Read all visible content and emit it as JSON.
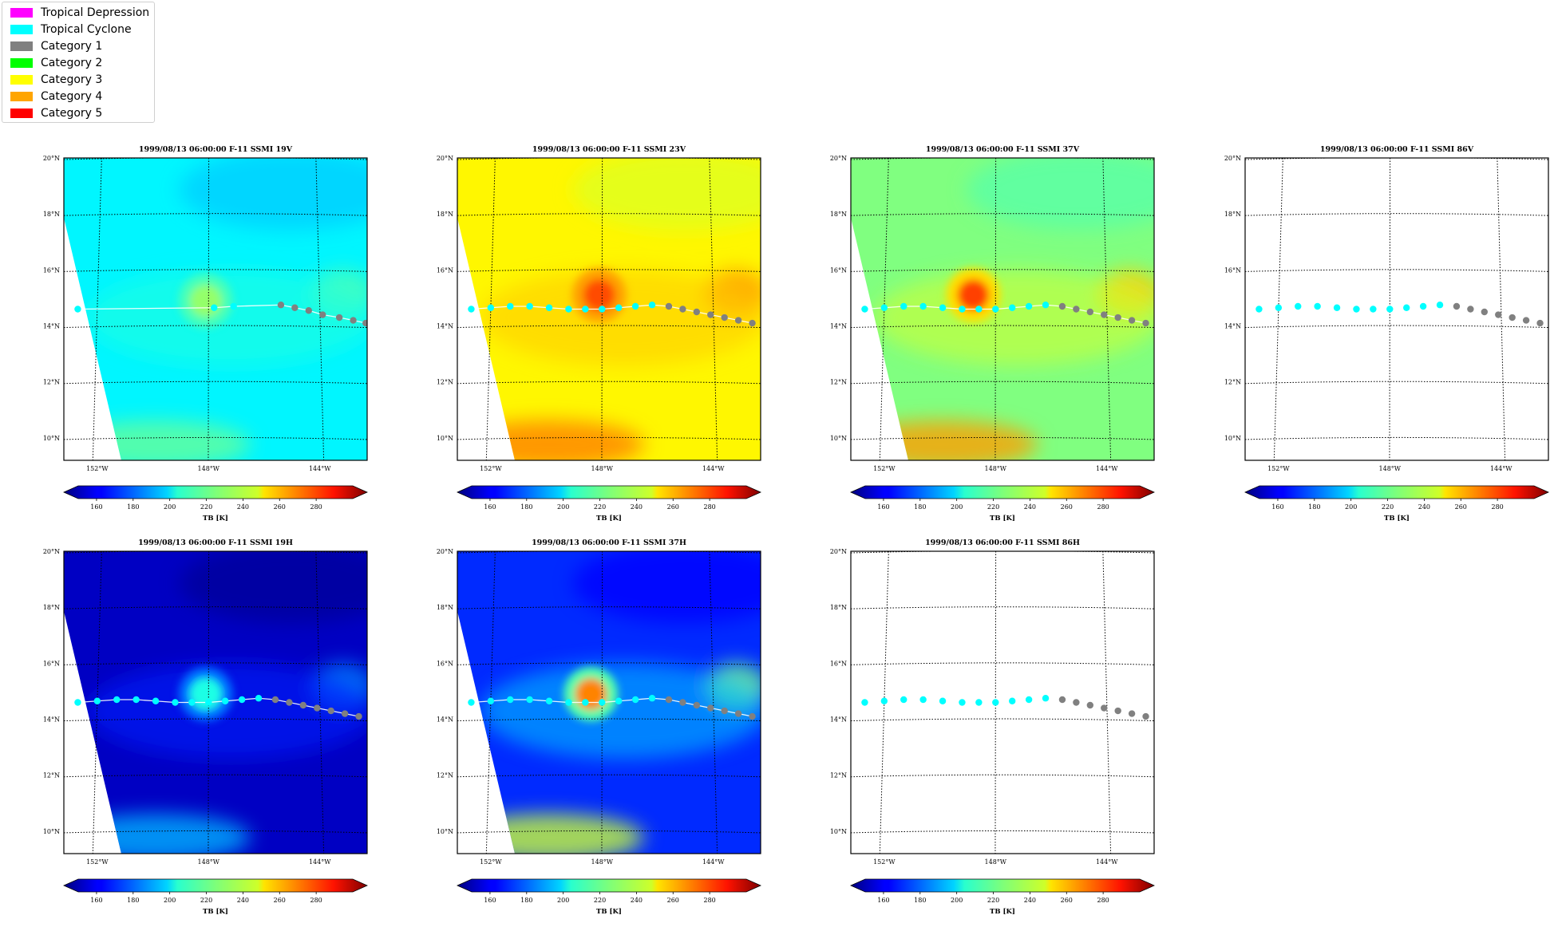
{
  "legend": [
    {
      "label": "Tropical Depression",
      "color": "#ff00ff"
    },
    {
      "label": "Tropical Cyclone",
      "color": "#00ffff"
    },
    {
      "label": "Category 1",
      "color": "#808080"
    },
    {
      "label": "Category 2",
      "color": "#00ff00"
    },
    {
      "label": "Category 3",
      "color": "#ffff00"
    },
    {
      "label": "Category 4",
      "color": "#ffa500"
    },
    {
      "label": "Category 5",
      "color": "#ff0000"
    }
  ],
  "chart_data": [
    {
      "type": "heatmap",
      "title": "1999/08/13 06:00:00  F-11 SSMI 19V",
      "channel": "19V",
      "xlabel": "",
      "ylabel": "",
      "x_ticks": [
        "152°W",
        "148°W",
        "144°W"
      ],
      "y_ticks": [
        "20°N",
        "18°N",
        "16°N",
        "14°N",
        "12°N",
        "10°N"
      ],
      "lon_range": [
        -153.2,
        -142.3
      ],
      "lat_range": [
        9.2,
        20.0
      ],
      "grid": true,
      "colorbar": {
        "label": "TB [K]",
        "ticks": [
          "160",
          "180",
          "200",
          "220",
          "240",
          "260",
          "280"
        ],
        "range": [
          150,
          300
        ],
        "colormap": "jet"
      },
      "field": {
        "background_tb": 205,
        "core_tb": 228,
        "core_lon": -148.1,
        "core_lat": 14.9,
        "coverage": "swath"
      },
      "track": [
        {
          "lon": -152.7,
          "lat": 14.6,
          "category": "Tropical Cyclone"
        },
        {
          "lon": -147.8,
          "lat": 14.65,
          "category": "Tropical Cyclone"
        },
        {
          "lon": -147.1,
          "lat": 14.7,
          "category": "Tropical Cyclone"
        },
        {
          "lon": -145.4,
          "lat": 14.75,
          "category": "Category 1"
        },
        {
          "lon": -144.9,
          "lat": 14.65,
          "category": "Category 1"
        },
        {
          "lon": -144.4,
          "lat": 14.55,
          "category": "Category 1"
        },
        {
          "lon": -143.9,
          "lat": 14.4,
          "category": "Category 1"
        },
        {
          "lon": -143.3,
          "lat": 14.3,
          "category": "Category 1"
        },
        {
          "lon": -142.8,
          "lat": 14.2,
          "category": "Category 1"
        },
        {
          "lon": -142.35,
          "lat": 14.1,
          "category": "Category 1"
        }
      ]
    },
    {
      "type": "heatmap",
      "title": "1999/08/13 06:00:00  F-11 SSMI 23V",
      "channel": "23V",
      "xlabel": "",
      "ylabel": "",
      "x_ticks": [
        "152°W",
        "148°W",
        "144°W"
      ],
      "y_ticks": [
        "20°N",
        "18°N",
        "16°N",
        "14°N",
        "12°N",
        "10°N"
      ],
      "lon_range": [
        -153.2,
        -142.3
      ],
      "lat_range": [
        9.2,
        20.0
      ],
      "grid": true,
      "colorbar": {
        "label": "TB [K]",
        "ticks": [
          "160",
          "180",
          "200",
          "220",
          "240",
          "260",
          "280"
        ],
        "range": [
          150,
          300
        ],
        "colormap": "jet"
      },
      "field": {
        "background_tb": 245,
        "core_tb": 270,
        "core_lon": -148.1,
        "core_lat": 15.1,
        "coverage": "swath"
      },
      "track": [
        {
          "lon": -152.7,
          "lat": 14.6,
          "category": "Tropical Cyclone"
        },
        {
          "lon": -152.0,
          "lat": 14.65,
          "category": "Tropical Cyclone"
        },
        {
          "lon": -151.3,
          "lat": 14.7,
          "category": "Tropical Cyclone"
        },
        {
          "lon": -150.6,
          "lat": 14.7,
          "category": "Tropical Cyclone"
        },
        {
          "lon": -149.9,
          "lat": 14.65,
          "category": "Tropical Cyclone"
        },
        {
          "lon": -149.2,
          "lat": 14.6,
          "category": "Tropical Cyclone"
        },
        {
          "lon": -148.6,
          "lat": 14.6,
          "category": "Tropical Cyclone"
        },
        {
          "lon": -148.0,
          "lat": 14.6,
          "category": "Tropical Cyclone"
        },
        {
          "lon": -147.4,
          "lat": 14.65,
          "category": "Tropical Cyclone"
        },
        {
          "lon": -146.8,
          "lat": 14.7,
          "category": "Tropical Cyclone"
        },
        {
          "lon": -146.2,
          "lat": 14.75,
          "category": "Tropical Cyclone"
        },
        {
          "lon": -145.6,
          "lat": 14.7,
          "category": "Category 1"
        },
        {
          "lon": -145.1,
          "lat": 14.6,
          "category": "Category 1"
        },
        {
          "lon": -144.6,
          "lat": 14.5,
          "category": "Category 1"
        },
        {
          "lon": -144.1,
          "lat": 14.4,
          "category": "Category 1"
        },
        {
          "lon": -143.6,
          "lat": 14.3,
          "category": "Category 1"
        },
        {
          "lon": -143.1,
          "lat": 14.2,
          "category": "Category 1"
        },
        {
          "lon": -142.6,
          "lat": 14.1,
          "category": "Category 1"
        }
      ]
    },
    {
      "type": "heatmap",
      "title": "1999/08/13 06:00:00  F-11 SSMI 37V",
      "channel": "37V",
      "xlabel": "",
      "ylabel": "",
      "x_ticks": [
        "152°W",
        "148°W",
        "144°W"
      ],
      "y_ticks": [
        "20°N",
        "18°N",
        "16°N",
        "14°N",
        "12°N",
        "10°N"
      ],
      "lon_range": [
        -153.2,
        -142.3
      ],
      "lat_range": [
        9.2,
        20.0
      ],
      "grid": true,
      "colorbar": {
        "label": "TB [K]",
        "ticks": [
          "160",
          "180",
          "200",
          "220",
          "240",
          "260",
          "280"
        ],
        "range": [
          150,
          300
        ],
        "colormap": "jet"
      },
      "field": {
        "background_tb": 225,
        "core_tb": 272,
        "core_lon": -148.8,
        "core_lat": 15.1,
        "coverage": "swath"
      },
      "track": [
        {
          "lon": -152.7,
          "lat": 14.6,
          "category": "Tropical Cyclone"
        },
        {
          "lon": -152.0,
          "lat": 14.65,
          "category": "Tropical Cyclone"
        },
        {
          "lon": -151.3,
          "lat": 14.7,
          "category": "Tropical Cyclone"
        },
        {
          "lon": -150.6,
          "lat": 14.7,
          "category": "Tropical Cyclone"
        },
        {
          "lon": -149.9,
          "lat": 14.65,
          "category": "Tropical Cyclone"
        },
        {
          "lon": -149.2,
          "lat": 14.6,
          "category": "Tropical Cyclone"
        },
        {
          "lon": -148.6,
          "lat": 14.6,
          "category": "Tropical Cyclone"
        },
        {
          "lon": -148.0,
          "lat": 14.6,
          "category": "Tropical Cyclone"
        },
        {
          "lon": -147.4,
          "lat": 14.65,
          "category": "Tropical Cyclone"
        },
        {
          "lon": -146.8,
          "lat": 14.7,
          "category": "Tropical Cyclone"
        },
        {
          "lon": -146.2,
          "lat": 14.75,
          "category": "Tropical Cyclone"
        },
        {
          "lon": -145.6,
          "lat": 14.7,
          "category": "Category 1"
        },
        {
          "lon": -145.1,
          "lat": 14.6,
          "category": "Category 1"
        },
        {
          "lon": -144.6,
          "lat": 14.5,
          "category": "Category 1"
        },
        {
          "lon": -144.1,
          "lat": 14.4,
          "category": "Category 1"
        },
        {
          "lon": -143.6,
          "lat": 14.3,
          "category": "Category 1"
        },
        {
          "lon": -143.1,
          "lat": 14.2,
          "category": "Category 1"
        },
        {
          "lon": -142.6,
          "lat": 14.1,
          "category": "Category 1"
        }
      ]
    },
    {
      "type": "heatmap",
      "title": "1999/08/13 06:00:00  F-11 SSMI 86V",
      "channel": "86V",
      "xlabel": "",
      "ylabel": "",
      "x_ticks": [
        "152°W",
        "148°W",
        "144°W"
      ],
      "y_ticks": [
        "20°N",
        "18°N",
        "16°N",
        "14°N",
        "12°N",
        "10°N"
      ],
      "lon_range": [
        -153.2,
        -142.3
      ],
      "lat_range": [
        9.2,
        20.0
      ],
      "grid": true,
      "colorbar": {
        "label": "TB [K]",
        "ticks": [
          "160",
          "180",
          "200",
          "220",
          "240",
          "260",
          "280"
        ],
        "range": [
          150,
          300
        ],
        "colormap": "jet"
      },
      "field": null,
      "track": [
        {
          "lon": -152.7,
          "lat": 14.6,
          "category": "Tropical Cyclone"
        },
        {
          "lon": -152.0,
          "lat": 14.65,
          "category": "Tropical Cyclone"
        },
        {
          "lon": -151.3,
          "lat": 14.7,
          "category": "Tropical Cyclone"
        },
        {
          "lon": -150.6,
          "lat": 14.7,
          "category": "Tropical Cyclone"
        },
        {
          "lon": -149.9,
          "lat": 14.65,
          "category": "Tropical Cyclone"
        },
        {
          "lon": -149.2,
          "lat": 14.6,
          "category": "Tropical Cyclone"
        },
        {
          "lon": -148.6,
          "lat": 14.6,
          "category": "Tropical Cyclone"
        },
        {
          "lon": -148.0,
          "lat": 14.6,
          "category": "Tropical Cyclone"
        },
        {
          "lon": -147.4,
          "lat": 14.65,
          "category": "Tropical Cyclone"
        },
        {
          "lon": -146.8,
          "lat": 14.7,
          "category": "Tropical Cyclone"
        },
        {
          "lon": -146.2,
          "lat": 14.75,
          "category": "Tropical Cyclone"
        },
        {
          "lon": -145.6,
          "lat": 14.7,
          "category": "Category 1"
        },
        {
          "lon": -145.1,
          "lat": 14.6,
          "category": "Category 1"
        },
        {
          "lon": -144.6,
          "lat": 14.5,
          "category": "Category 1"
        },
        {
          "lon": -144.1,
          "lat": 14.4,
          "category": "Category 1"
        },
        {
          "lon": -143.6,
          "lat": 14.3,
          "category": "Category 1"
        },
        {
          "lon": -143.1,
          "lat": 14.2,
          "category": "Category 1"
        },
        {
          "lon": -142.6,
          "lat": 14.1,
          "category": "Category 1"
        }
      ]
    },
    {
      "type": "heatmap",
      "title": "1999/08/13 06:00:00  F-11 SSMI 19H",
      "channel": "19H",
      "xlabel": "",
      "ylabel": "",
      "x_ticks": [
        "152°W",
        "148°W",
        "144°W"
      ],
      "y_ticks": [
        "20°N",
        "18°N",
        "16°N",
        "14°N",
        "12°N",
        "10°N"
      ],
      "lon_range": [
        -153.2,
        -142.3
      ],
      "lat_range": [
        9.2,
        20.0
      ],
      "grid": true,
      "colorbar": {
        "label": "TB [K]",
        "ticks": [
          "160",
          "180",
          "200",
          "220",
          "240",
          "260",
          "280"
        ],
        "range": [
          150,
          300
        ],
        "colormap": "jet"
      },
      "field": {
        "background_tb": 160,
        "core_tb": 210,
        "core_lon": -148.1,
        "core_lat": 14.9,
        "coverage": "swath"
      },
      "track": [
        {
          "lon": -152.7,
          "lat": 14.6,
          "category": "Tropical Cyclone"
        },
        {
          "lon": -152.0,
          "lat": 14.65,
          "category": "Tropical Cyclone"
        },
        {
          "lon": -151.3,
          "lat": 14.7,
          "category": "Tropical Cyclone"
        },
        {
          "lon": -150.6,
          "lat": 14.7,
          "category": "Tropical Cyclone"
        },
        {
          "lon": -149.9,
          "lat": 14.65,
          "category": "Tropical Cyclone"
        },
        {
          "lon": -149.2,
          "lat": 14.6,
          "category": "Tropical Cyclone"
        },
        {
          "lon": -148.6,
          "lat": 14.6,
          "category": "Tropical Cyclone"
        },
        {
          "lon": -148.0,
          "lat": 14.6,
          "category": "Tropical Cyclone"
        },
        {
          "lon": -147.4,
          "lat": 14.65,
          "category": "Tropical Cyclone"
        },
        {
          "lon": -146.8,
          "lat": 14.7,
          "category": "Tropical Cyclone"
        },
        {
          "lon": -146.2,
          "lat": 14.75,
          "category": "Tropical Cyclone"
        },
        {
          "lon": -145.6,
          "lat": 14.7,
          "category": "Category 1"
        },
        {
          "lon": -145.1,
          "lat": 14.6,
          "category": "Category 1"
        },
        {
          "lon": -144.6,
          "lat": 14.5,
          "category": "Category 1"
        },
        {
          "lon": -144.1,
          "lat": 14.4,
          "category": "Category 1"
        },
        {
          "lon": -143.6,
          "lat": 14.3,
          "category": "Category 1"
        },
        {
          "lon": -143.1,
          "lat": 14.2,
          "category": "Category 1"
        },
        {
          "lon": -142.6,
          "lat": 14.1,
          "category": "Category 1"
        }
      ]
    },
    {
      "type": "heatmap",
      "title": "1999/08/13 06:00:00  F-11 SSMI 37H",
      "channel": "37H",
      "xlabel": "",
      "ylabel": "",
      "x_ticks": [
        "152°W",
        "148°W",
        "144°W"
      ],
      "y_ticks": [
        "20°N",
        "18°N",
        "16°N",
        "14°N",
        "12°N",
        "10°N"
      ],
      "lon_range": [
        -153.2,
        -142.3
      ],
      "lat_range": [
        9.2,
        20.0
      ],
      "grid": true,
      "colorbar": {
        "label": "TB [K]",
        "ticks": [
          "160",
          "180",
          "200",
          "220",
          "240",
          "260",
          "280"
        ],
        "range": [
          150,
          300
        ],
        "colormap": "jet"
      },
      "field": {
        "background_tb": 175,
        "core_tb": 262,
        "core_lon": -148.4,
        "core_lat": 14.9,
        "coverage": "swath"
      },
      "track": [
        {
          "lon": -152.7,
          "lat": 14.6,
          "category": "Tropical Cyclone"
        },
        {
          "lon": -152.0,
          "lat": 14.65,
          "category": "Tropical Cyclone"
        },
        {
          "lon": -151.3,
          "lat": 14.7,
          "category": "Tropical Cyclone"
        },
        {
          "lon": -150.6,
          "lat": 14.7,
          "category": "Tropical Cyclone"
        },
        {
          "lon": -149.9,
          "lat": 14.65,
          "category": "Tropical Cyclone"
        },
        {
          "lon": -149.2,
          "lat": 14.6,
          "category": "Tropical Cyclone"
        },
        {
          "lon": -148.6,
          "lat": 14.6,
          "category": "Tropical Cyclone"
        },
        {
          "lon": -148.0,
          "lat": 14.6,
          "category": "Tropical Cyclone"
        },
        {
          "lon": -147.4,
          "lat": 14.65,
          "category": "Tropical Cyclone"
        },
        {
          "lon": -146.8,
          "lat": 14.7,
          "category": "Tropical Cyclone"
        },
        {
          "lon": -146.2,
          "lat": 14.75,
          "category": "Tropical Cyclone"
        },
        {
          "lon": -145.6,
          "lat": 14.7,
          "category": "Category 1"
        },
        {
          "lon": -145.1,
          "lat": 14.6,
          "category": "Category 1"
        },
        {
          "lon": -144.6,
          "lat": 14.5,
          "category": "Category 1"
        },
        {
          "lon": -144.1,
          "lat": 14.4,
          "category": "Category 1"
        },
        {
          "lon": -143.6,
          "lat": 14.3,
          "category": "Category 1"
        },
        {
          "lon": -143.1,
          "lat": 14.2,
          "category": "Category 1"
        },
        {
          "lon": -142.6,
          "lat": 14.1,
          "category": "Category 1"
        }
      ]
    },
    {
      "type": "heatmap",
      "title": "1999/08/13 06:00:00  F-11 SSMI 86H",
      "channel": "86H",
      "xlabel": "",
      "ylabel": "",
      "x_ticks": [
        "152°W",
        "148°W",
        "144°W"
      ],
      "y_ticks": [
        "20°N",
        "18°N",
        "16°N",
        "14°N",
        "12°N",
        "10°N"
      ],
      "lon_range": [
        -153.2,
        -142.3
      ],
      "lat_range": [
        9.2,
        20.0
      ],
      "grid": true,
      "colorbar": {
        "label": "TB [K]",
        "ticks": [
          "160",
          "180",
          "200",
          "220",
          "240",
          "260",
          "280"
        ],
        "range": [
          150,
          300
        ],
        "colormap": "jet"
      },
      "field": null,
      "track": [
        {
          "lon": -152.7,
          "lat": 14.6,
          "category": "Tropical Cyclone"
        },
        {
          "lon": -152.0,
          "lat": 14.65,
          "category": "Tropical Cyclone"
        },
        {
          "lon": -151.3,
          "lat": 14.7,
          "category": "Tropical Cyclone"
        },
        {
          "lon": -150.6,
          "lat": 14.7,
          "category": "Tropical Cyclone"
        },
        {
          "lon": -149.9,
          "lat": 14.65,
          "category": "Tropical Cyclone"
        },
        {
          "lon": -149.2,
          "lat": 14.6,
          "category": "Tropical Cyclone"
        },
        {
          "lon": -148.6,
          "lat": 14.6,
          "category": "Tropical Cyclone"
        },
        {
          "lon": -148.0,
          "lat": 14.6,
          "category": "Tropical Cyclone"
        },
        {
          "lon": -147.4,
          "lat": 14.65,
          "category": "Tropical Cyclone"
        },
        {
          "lon": -146.8,
          "lat": 14.7,
          "category": "Tropical Cyclone"
        },
        {
          "lon": -146.2,
          "lat": 14.75,
          "category": "Tropical Cyclone"
        },
        {
          "lon": -145.6,
          "lat": 14.7,
          "category": "Category 1"
        },
        {
          "lon": -145.1,
          "lat": 14.6,
          "category": "Category 1"
        },
        {
          "lon": -144.6,
          "lat": 14.5,
          "category": "Category 1"
        },
        {
          "lon": -144.1,
          "lat": 14.4,
          "category": "Category 1"
        },
        {
          "lon": -143.6,
          "lat": 14.3,
          "category": "Category 1"
        },
        {
          "lon": -143.1,
          "lat": 14.2,
          "category": "Category 1"
        },
        {
          "lon": -142.6,
          "lat": 14.1,
          "category": "Category 1"
        }
      ]
    }
  ]
}
